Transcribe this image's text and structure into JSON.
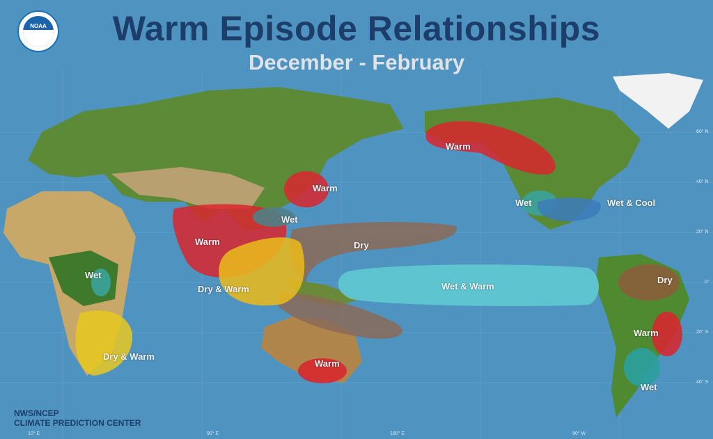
{
  "header": {
    "title": "Warm Episode Relationships",
    "subtitle": "December - February",
    "logo_text": "NOAA"
  },
  "credit": {
    "line1": "NWS/NCEP",
    "line2": "CLIMATE PREDICTION CENTER"
  },
  "latitude_labels": [
    "60° N",
    "40° N",
    "20° N",
    "0°",
    "20° S",
    "40° S"
  ],
  "longitude_labels": [
    "10° E",
    "90° E",
    "180° E",
    "90° W"
  ],
  "regions": [
    {
      "label": "Warm",
      "area": "Alaska / NE Pacific",
      "color": "#d8262e"
    },
    {
      "label": "Warm",
      "area": "Japan",
      "color": "#d8262e"
    },
    {
      "label": "Wet",
      "area": "Philippines",
      "color": "#4f7f86"
    },
    {
      "label": "Warm",
      "area": "South & Southeast Asia",
      "color": "#d8262e"
    },
    {
      "label": "Dry",
      "area": "Western tropical Pacific",
      "color": "#8a6a58"
    },
    {
      "label": "Dry & Warm",
      "area": "Maritime continent",
      "color": "#e8b81c"
    },
    {
      "label": "Wet & Warm",
      "area": "Central/eastern equatorial Pacific",
      "color": "#5fc8d0"
    },
    {
      "label": "Wet",
      "area": "Southwest US",
      "color": "#3aa3a3"
    },
    {
      "label": "Wet & Cool",
      "area": "Southeast US",
      "color": "#3c7bb8"
    },
    {
      "label": "Dry",
      "area": "Northern South America",
      "color": "#8a5e3c"
    },
    {
      "label": "Warm",
      "area": "Southeastern Brazil",
      "color": "#d8262e"
    },
    {
      "label": "Wet",
      "area": "Southeastern South America",
      "color": "#2aa0a0"
    },
    {
      "label": "Wet",
      "area": "East Africa",
      "color": "#3aa39a"
    },
    {
      "label": "Dry & Warm",
      "area": "Southern Africa",
      "color": "#e8c820"
    },
    {
      "label": "Warm",
      "area": "Southeastern Australia",
      "color": "#d8262e"
    }
  ],
  "colors": {
    "ocean": "#4f93c0",
    "title": "#1d3d6b",
    "subtitle": "#dfe3e8"
  }
}
